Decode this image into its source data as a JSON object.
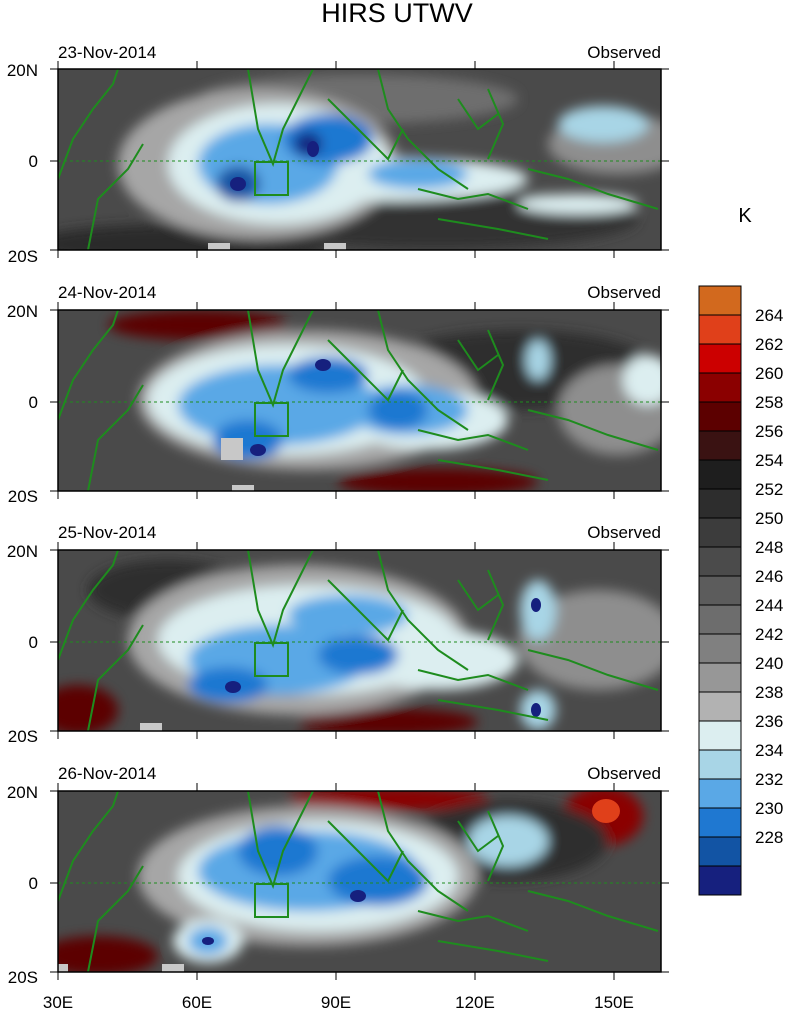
{
  "title": "HIRS UTWV",
  "colorbar": {
    "unit": "K",
    "labels": [
      "264",
      "262",
      "260",
      "258",
      "256",
      "254",
      "252",
      "250",
      "248",
      "246",
      "244",
      "242",
      "240",
      "238",
      "236",
      "234",
      "232",
      "230",
      "228"
    ],
    "colors": [
      "#d2691e",
      "#e0401a",
      "#cc0000",
      "#8b0000",
      "#5c0000",
      "#3a1212",
      "#1e1e1e",
      "#2d2d2d",
      "#3c3c3c",
      "#4b4b4b",
      "#5c5c5c",
      "#6d6d6d",
      "#808080",
      "#979797",
      "#b2b2b2",
      "#dceef0",
      "#a8d5e6",
      "#5aa8e6",
      "#1f78d1",
      "#1254a4",
      "#16207e"
    ]
  },
  "x_axis": {
    "labels": [
      "30E",
      "60E",
      "90E",
      "120E",
      "150E"
    ]
  },
  "y_axis": {
    "labels": [
      "20N",
      "0",
      "20S"
    ]
  },
  "panels": [
    {
      "date": "23-Nov-2014",
      "status": "Observed"
    },
    {
      "date": "24-Nov-2014",
      "status": "Observed"
    },
    {
      "date": "25-Nov-2014",
      "status": "Observed"
    },
    {
      "date": "26-Nov-2014",
      "status": "Observed"
    }
  ]
}
